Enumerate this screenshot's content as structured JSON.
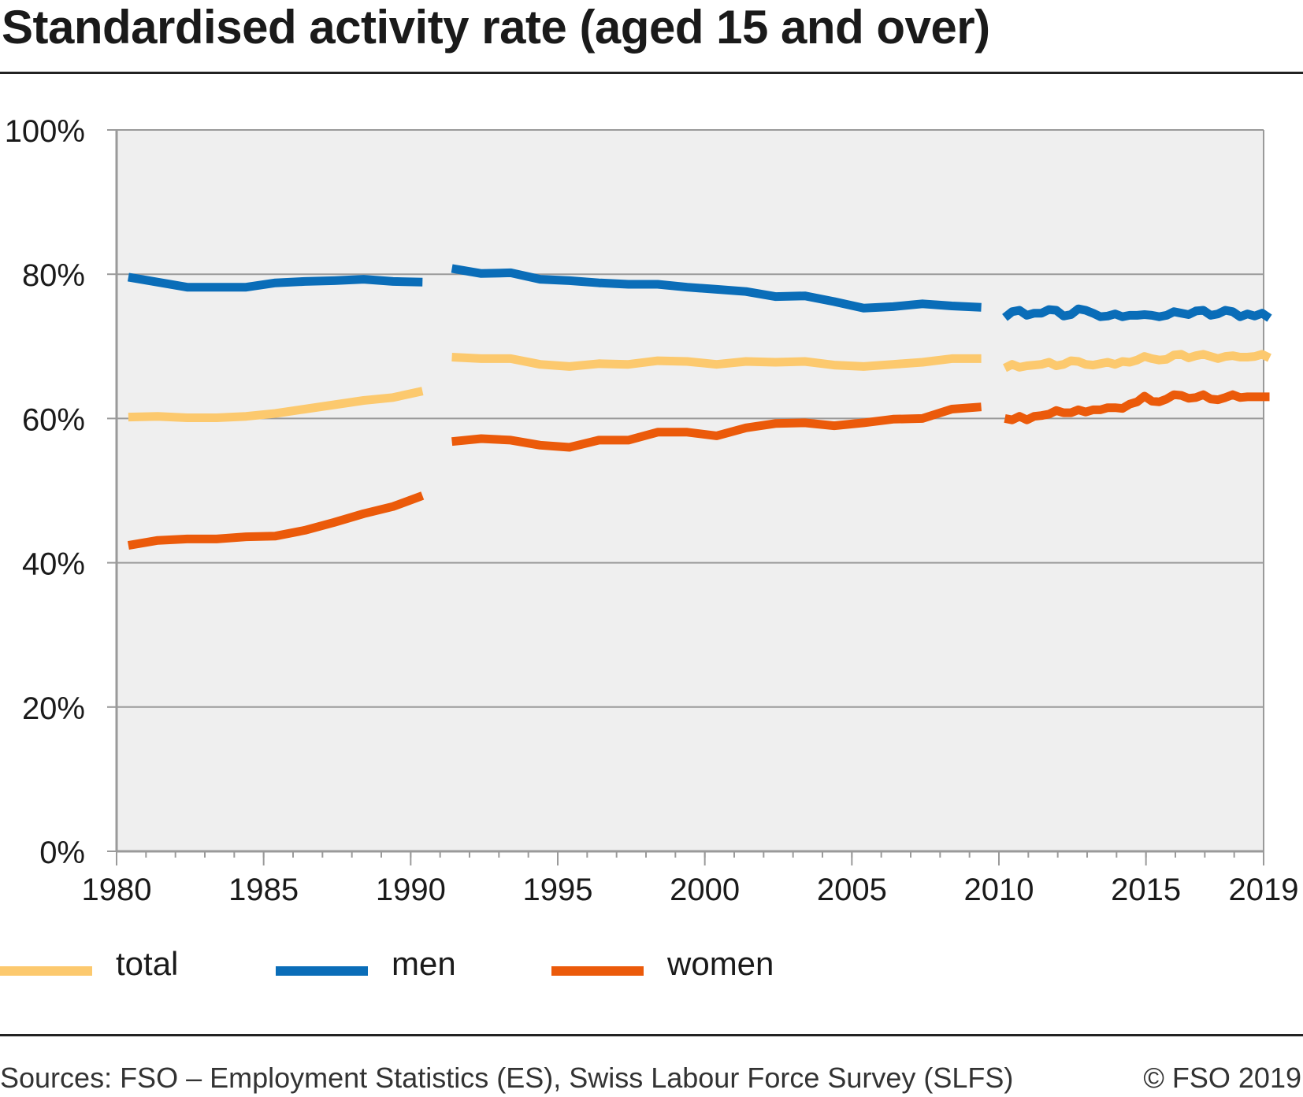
{
  "title": "Standardised activity rate (aged 15 and over)",
  "source": "Sources: FSO – Employment Statistics (ES), Swiss Labour Force Survey (SLFS)",
  "copyright": "© FSO 2019",
  "legend": [
    {
      "label": "total",
      "color": "#FCC96E"
    },
    {
      "label": "men",
      "color": "#0A6DB8"
    },
    {
      "label": "women",
      "color": "#EB5A0A"
    }
  ],
  "chart_data": {
    "type": "line",
    "title": "Standardised activity rate (aged 15 and over)",
    "xlabel": "",
    "ylabel": "",
    "xlim": [
      1980,
      2019
    ],
    "ylim": [
      0,
      100
    ],
    "x_ticks": [
      1980,
      1985,
      1990,
      1995,
      2000,
      2005,
      2010,
      2015,
      2019
    ],
    "y_ticks": [
      "0%",
      "20%",
      "40%",
      "60%",
      "80%",
      "100%"
    ],
    "y_tick_values": [
      0,
      20,
      40,
      60,
      80,
      100
    ],
    "grid": true,
    "legend_position": "bottom",
    "plot_background": "#EFEFEF",
    "series": [
      {
        "name": "total",
        "color": "#FCC96E",
        "segments": [
          [
            [
              1980.4,
              60.2
            ],
            [
              1981.4,
              60.3
            ],
            [
              1982.4,
              60.1
            ],
            [
              1983.4,
              60.1
            ],
            [
              1984.4,
              60.3
            ],
            [
              1985.4,
              60.7
            ],
            [
              1986.4,
              61.3
            ],
            [
              1987.4,
              61.9
            ],
            [
              1988.4,
              62.5
            ],
            [
              1989.4,
              62.9
            ],
            [
              1990.4,
              63.8
            ]
          ],
          [
            [
              1991.4,
              68.5
            ],
            [
              1992.4,
              68.3
            ],
            [
              1993.4,
              68.3
            ],
            [
              1994.4,
              67.5
            ],
            [
              1995.4,
              67.2
            ],
            [
              1996.4,
              67.6
            ],
            [
              1997.4,
              67.5
            ],
            [
              1998.4,
              68.0
            ],
            [
              1999.4,
              67.9
            ],
            [
              2000.4,
              67.5
            ],
            [
              2001.4,
              67.9
            ],
            [
              2002.4,
              67.8
            ],
            [
              2003.4,
              67.9
            ],
            [
              2004.4,
              67.4
            ],
            [
              2005.4,
              67.2
            ],
            [
              2006.4,
              67.5
            ],
            [
              2007.4,
              67.8
            ],
            [
              2008.4,
              68.3
            ],
            [
              2009.4,
              68.3
            ]
          ],
          [
            [
              2010.2,
              67.0
            ],
            [
              2010.45,
              67.5
            ],
            [
              2010.7,
              67.1
            ],
            [
              2010.95,
              67.3
            ],
            [
              2011.2,
              67.4
            ],
            [
              2011.45,
              67.5
            ],
            [
              2011.7,
              67.8
            ],
            [
              2011.95,
              67.3
            ],
            [
              2012.2,
              67.5
            ],
            [
              2012.45,
              68.0
            ],
            [
              2012.7,
              67.9
            ],
            [
              2012.95,
              67.5
            ],
            [
              2013.2,
              67.4
            ],
            [
              2013.45,
              67.6
            ],
            [
              2013.7,
              67.8
            ],
            [
              2013.95,
              67.5
            ],
            [
              2014.2,
              67.9
            ],
            [
              2014.45,
              67.8
            ],
            [
              2014.7,
              68.1
            ],
            [
              2014.95,
              68.6
            ],
            [
              2015.2,
              68.3
            ],
            [
              2015.45,
              68.1
            ],
            [
              2015.7,
              68.2
            ],
            [
              2015.95,
              68.8
            ],
            [
              2016.2,
              68.9
            ],
            [
              2016.45,
              68.4
            ],
            [
              2016.7,
              68.7
            ],
            [
              2016.95,
              68.9
            ],
            [
              2017.2,
              68.6
            ],
            [
              2017.45,
              68.3
            ],
            [
              2017.7,
              68.6
            ],
            [
              2017.95,
              68.7
            ],
            [
              2018.2,
              68.5
            ],
            [
              2018.45,
              68.5
            ],
            [
              2018.7,
              68.6
            ],
            [
              2018.95,
              68.9
            ],
            [
              2019.2,
              68.4
            ]
          ]
        ]
      },
      {
        "name": "men",
        "color": "#0A6DB8",
        "segments": [
          [
            [
              1980.4,
              79.6
            ],
            [
              1981.4,
              78.9
            ],
            [
              1982.4,
              78.2
            ],
            [
              1983.4,
              78.2
            ],
            [
              1984.4,
              78.2
            ],
            [
              1985.4,
              78.8
            ],
            [
              1986.4,
              79.0
            ],
            [
              1987.4,
              79.1
            ],
            [
              1988.4,
              79.3
            ],
            [
              1989.4,
              79.0
            ],
            [
              1990.4,
              78.9
            ]
          ],
          [
            [
              1991.4,
              80.8
            ],
            [
              1992.4,
              80.1
            ],
            [
              1993.4,
              80.2
            ],
            [
              1994.4,
              79.3
            ],
            [
              1995.4,
              79.1
            ],
            [
              1996.4,
              78.8
            ],
            [
              1997.4,
              78.6
            ],
            [
              1998.4,
              78.6
            ],
            [
              1999.4,
              78.2
            ],
            [
              2000.4,
              77.9
            ],
            [
              2001.4,
              77.6
            ],
            [
              2002.4,
              76.9
            ],
            [
              2003.4,
              77.0
            ],
            [
              2004.4,
              76.2
            ],
            [
              2005.4,
              75.3
            ],
            [
              2006.4,
              75.5
            ],
            [
              2007.4,
              75.9
            ],
            [
              2008.4,
              75.6
            ],
            [
              2009.4,
              75.4
            ]
          ],
          [
            [
              2010.2,
              74.0
            ],
            [
              2010.45,
              74.8
            ],
            [
              2010.7,
              75.0
            ],
            [
              2010.95,
              74.3
            ],
            [
              2011.2,
              74.6
            ],
            [
              2011.45,
              74.6
            ],
            [
              2011.7,
              75.1
            ],
            [
              2011.95,
              75.0
            ],
            [
              2012.2,
              74.2
            ],
            [
              2012.45,
              74.4
            ],
            [
              2012.7,
              75.2
            ],
            [
              2012.95,
              75.0
            ],
            [
              2013.2,
              74.6
            ],
            [
              2013.45,
              74.1
            ],
            [
              2013.7,
              74.2
            ],
            [
              2013.95,
              74.5
            ],
            [
              2014.2,
              74.1
            ],
            [
              2014.45,
              74.3
            ],
            [
              2014.7,
              74.3
            ],
            [
              2014.95,
              74.4
            ],
            [
              2015.2,
              74.3
            ],
            [
              2015.45,
              74.1
            ],
            [
              2015.7,
              74.3
            ],
            [
              2015.95,
              74.8
            ],
            [
              2016.2,
              74.6
            ],
            [
              2016.45,
              74.4
            ],
            [
              2016.7,
              74.9
            ],
            [
              2016.95,
              75.0
            ],
            [
              2017.2,
              74.3
            ],
            [
              2017.45,
              74.5
            ],
            [
              2017.7,
              75.0
            ],
            [
              2017.95,
              74.8
            ],
            [
              2018.2,
              74.1
            ],
            [
              2018.45,
              74.5
            ],
            [
              2018.7,
              74.2
            ],
            [
              2018.95,
              74.6
            ],
            [
              2019.2,
              73.9
            ]
          ]
        ]
      },
      {
        "name": "women",
        "color": "#EB5A0A",
        "segments": [
          [
            [
              1980.4,
              42.4
            ],
            [
              1981.4,
              43.1
            ],
            [
              1982.4,
              43.3
            ],
            [
              1983.4,
              43.3
            ],
            [
              1984.4,
              43.6
            ],
            [
              1985.4,
              43.7
            ],
            [
              1986.4,
              44.5
            ],
            [
              1987.4,
              45.6
            ],
            [
              1988.4,
              46.8
            ],
            [
              1989.4,
              47.8
            ],
            [
              1990.4,
              49.3
            ]
          ],
          [
            [
              1991.4,
              56.8
            ],
            [
              1992.4,
              57.2
            ],
            [
              1993.4,
              57.0
            ],
            [
              1994.4,
              56.3
            ],
            [
              1995.4,
              56.0
            ],
            [
              1996.4,
              57.0
            ],
            [
              1997.4,
              57.0
            ],
            [
              1998.4,
              58.1
            ],
            [
              1999.4,
              58.1
            ],
            [
              2000.4,
              57.6
            ],
            [
              2001.4,
              58.7
            ],
            [
              2002.4,
              59.3
            ],
            [
              2003.4,
              59.4
            ],
            [
              2004.4,
              59.0
            ],
            [
              2005.4,
              59.4
            ],
            [
              2006.4,
              59.9
            ],
            [
              2007.4,
              60.0
            ],
            [
              2008.4,
              61.3
            ],
            [
              2009.4,
              61.6
            ]
          ],
          [
            [
              2010.2,
              60.0
            ],
            [
              2010.45,
              59.8
            ],
            [
              2010.7,
              60.3
            ],
            [
              2010.95,
              59.8
            ],
            [
              2011.2,
              60.3
            ],
            [
              2011.45,
              60.4
            ],
            [
              2011.7,
              60.6
            ],
            [
              2011.95,
              61.1
            ],
            [
              2012.2,
              60.8
            ],
            [
              2012.45,
              60.8
            ],
            [
              2012.7,
              61.2
            ],
            [
              2012.95,
              60.9
            ],
            [
              2013.2,
              61.2
            ],
            [
              2013.45,
              61.2
            ],
            [
              2013.7,
              61.5
            ],
            [
              2013.95,
              61.5
            ],
            [
              2014.2,
              61.4
            ],
            [
              2014.45,
              62.0
            ],
            [
              2014.7,
              62.3
            ],
            [
              2014.95,
              63.1
            ],
            [
              2015.2,
              62.4
            ],
            [
              2015.45,
              62.3
            ],
            [
              2015.7,
              62.7
            ],
            [
              2015.95,
              63.3
            ],
            [
              2016.2,
              63.2
            ],
            [
              2016.45,
              62.8
            ],
            [
              2016.7,
              62.9
            ],
            [
              2016.95,
              63.3
            ],
            [
              2017.2,
              62.7
            ],
            [
              2017.45,
              62.6
            ],
            [
              2017.7,
              62.9
            ],
            [
              2017.95,
              63.3
            ],
            [
              2018.2,
              62.9
            ],
            [
              2018.45,
              63.0
            ],
            [
              2018.7,
              63.0
            ],
            [
              2018.95,
              63.0
            ],
            [
              2019.2,
              63.0
            ]
          ]
        ]
      }
    ]
  }
}
